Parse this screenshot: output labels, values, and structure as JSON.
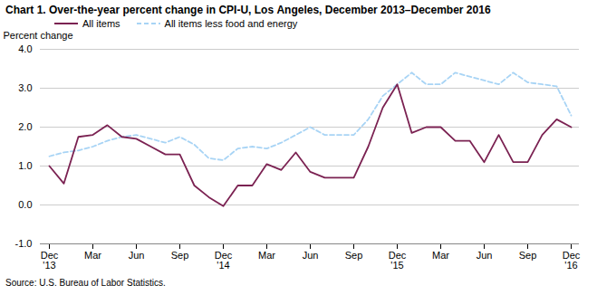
{
  "chart_data": {
    "type": "line",
    "title": "Chart 1. Over-the-year percent change in CPI-U, Los Angeles, December 2013–December 2016",
    "y_label": "Percent change",
    "source": "Source: U.S. Bureau of Labor Statistics.",
    "categories": [
      "Dec\n'13",
      null,
      null,
      "Mar",
      null,
      null,
      "Jun",
      null,
      null,
      "Sep",
      null,
      null,
      "Dec\n'14",
      null,
      null,
      "Mar",
      null,
      null,
      "Jun",
      null,
      null,
      "Sep",
      null,
      null,
      "Dec\n'15",
      null,
      null,
      "Mar",
      null,
      null,
      "Jun",
      null,
      null,
      "Sep",
      null,
      null,
      "Dec\n'16"
    ],
    "series": [
      {
        "name": "All items",
        "color": "#7B2252",
        "line_style": "solid",
        "values": [
          1.0,
          0.55,
          1.75,
          1.8,
          2.05,
          1.75,
          1.7,
          1.5,
          1.3,
          1.3,
          0.5,
          0.2,
          -0.03,
          0.5,
          0.5,
          1.05,
          0.9,
          1.35,
          0.85,
          0.7,
          0.7,
          0.7,
          1.5,
          2.5,
          3.1,
          1.85,
          2.0,
          2.0,
          1.65,
          1.65,
          1.1,
          1.8,
          1.1,
          1.1,
          1.8,
          2.2,
          2.0
        ]
      },
      {
        "name": "All items less food and energy",
        "color": "#a8d4f5",
        "line_style": "dashed",
        "values": [
          1.25,
          1.35,
          1.4,
          1.5,
          1.65,
          1.75,
          1.8,
          1.7,
          1.6,
          1.75,
          1.55,
          1.2,
          1.15,
          1.45,
          1.5,
          1.45,
          1.6,
          1.8,
          2.0,
          1.8,
          1.8,
          1.8,
          2.2,
          2.8,
          3.1,
          3.4,
          3.1,
          3.1,
          3.4,
          3.3,
          3.2,
          3.1,
          3.4,
          3.15,
          3.1,
          3.05,
          2.3
        ]
      }
    ],
    "ylim": [
      -1.0,
      4.0
    ],
    "yticks": [
      {
        "value": -1.0,
        "label": "-1.0"
      },
      {
        "value": 0.0,
        "label": "0.0"
      },
      {
        "value": 1.0,
        "label": "1.0"
      },
      {
        "value": 2.0,
        "label": "2.0"
      },
      {
        "value": 3.0,
        "label": "3.0"
      },
      {
        "value": 4.0,
        "label": "4.0"
      }
    ],
    "grid": true,
    "legend": "top"
  }
}
